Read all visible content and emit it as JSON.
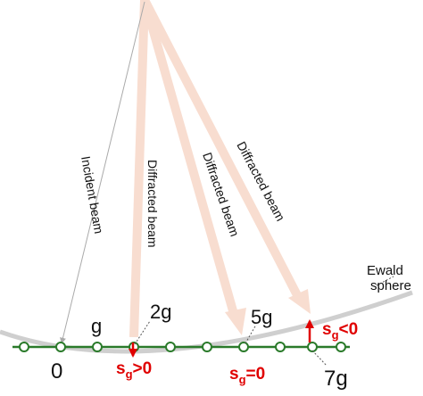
{
  "colors": {
    "beam": "#f8ddd0",
    "lattice_line": "#2a7a2a",
    "lattice_point": "#2a7a2a",
    "ewald": "#cfcfcf",
    "incident": "#aaaaaa",
    "sg": "#e00000",
    "text": "#111111"
  },
  "labels": {
    "incident_beam": "Incident beam",
    "diffracted_beam_1": "Diffracted beam",
    "diffracted_beam_2": "Diffracted beam",
    "diffracted_beam_3": "Diffracted beam",
    "ewald_line1": "Ewald",
    "ewald_line2": "sphere",
    "origin": "0",
    "g": "g",
    "two_g": "2g",
    "five_g": "5g",
    "seven_g": "7g"
  },
  "excitation_errors": {
    "sg_pos": {
      "base": "s",
      "sub": "g",
      "rel": ">0"
    },
    "sg_zero": {
      "base": "s",
      "sub": "g",
      "rel": "=0"
    },
    "sg_neg": {
      "base": "s",
      "sub": "g",
      "rel": "<0"
    }
  }
}
